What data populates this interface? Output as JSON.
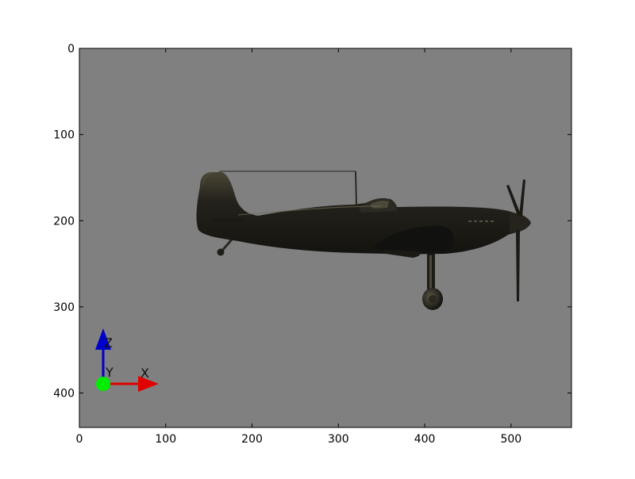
{
  "viewer": {
    "background_color": "#808080",
    "axes": {
      "x_range": [
        0,
        570
      ],
      "y_range": [
        0,
        440
      ],
      "y_inverted": true,
      "x_ticks": [
        "0",
        "100",
        "200",
        "300",
        "400",
        "500"
      ],
      "y_ticks": [
        "0",
        "100",
        "200",
        "300",
        "400"
      ],
      "x_tick_values": [
        0,
        100,
        200,
        300,
        400,
        500
      ],
      "y_tick_values": [
        0,
        100,
        200,
        300,
        400
      ]
    },
    "scene": {
      "object": "aircraft-icon",
      "object_color": "#1f1d17"
    },
    "axis_gizmo": {
      "x_label": "X",
      "y_label": "Y",
      "z_label": "Z",
      "x_color": "#e00000",
      "y_color": "#00ee00",
      "z_color": "#0000cc"
    }
  }
}
